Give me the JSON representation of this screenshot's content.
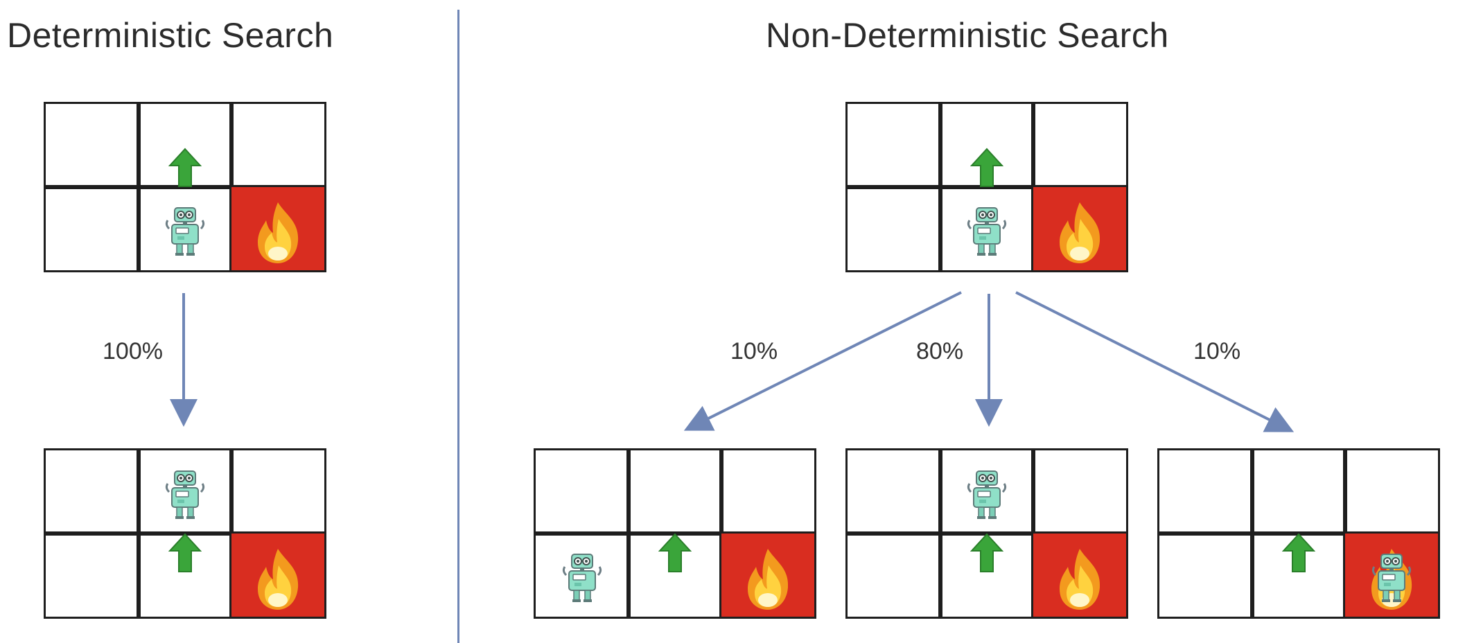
{
  "titles": {
    "left": "Deterministic Search",
    "right": "Non-Deterministic Search"
  },
  "colors": {
    "divider": "#6f86b6",
    "arrow_connector": "#6f86b6",
    "fire_cell": "#d92d20",
    "up_arrow": "#3aa53a",
    "robot_body": "#8fe0c8"
  },
  "probabilities": {
    "deterministic": "100%",
    "left": "10%",
    "center": "80%",
    "right": "10%"
  },
  "grids": [
    {
      "name": "det-start",
      "robot_cell": 4,
      "arrow_cell": 1,
      "fire_cell": 5,
      "robot_in_fire": false
    },
    {
      "name": "det-result",
      "robot_cell": 1,
      "arrow_cell": 4,
      "fire_cell": 5,
      "robot_in_fire": false
    },
    {
      "name": "nd-start",
      "robot_cell": 4,
      "arrow_cell": 1,
      "fire_cell": 5,
      "robot_in_fire": false
    },
    {
      "name": "nd-left",
      "robot_cell": 3,
      "arrow_cell": 4,
      "fire_cell": 5,
      "robot_in_fire": false
    },
    {
      "name": "nd-center",
      "robot_cell": 1,
      "arrow_cell": 4,
      "fire_cell": 5,
      "robot_in_fire": false
    },
    {
      "name": "nd-right",
      "robot_cell": 5,
      "arrow_cell": 4,
      "fire_cell": 5,
      "robot_in_fire": true
    }
  ]
}
